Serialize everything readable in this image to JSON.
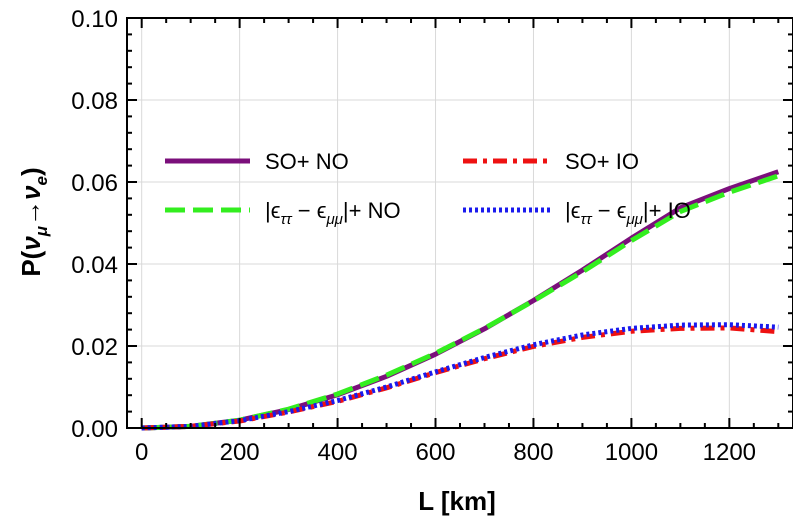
{
  "chart_data": {
    "type": "line",
    "xlabel": "L [km]",
    "ylabel": "P(ν_μ→ν_e)",
    "ylabel_parts": {
      "prefix": "P(",
      "nu1": "ν",
      "sub1": "μ",
      "arrow": "→",
      "nu2": "ν",
      "sub2": "e",
      "suffix": ")"
    },
    "xlim": [
      -30,
      1330
    ],
    "ylim": [
      0,
      0.1
    ],
    "x_ticks": [
      0,
      200,
      400,
      600,
      800,
      1000,
      1200
    ],
    "y_ticks": [
      0.0,
      0.02,
      0.04,
      0.06,
      0.08,
      0.1
    ],
    "x_tick_labels": [
      "0",
      "200",
      "400",
      "600",
      "800",
      "1000",
      "1200"
    ],
    "y_tick_labels": [
      "0.00",
      "0.02",
      "0.04",
      "0.06",
      "0.08",
      "0.10"
    ],
    "grid": true,
    "legend_position": "upper-left-inside",
    "x": [
      0,
      100,
      200,
      300,
      400,
      500,
      600,
      700,
      800,
      900,
      1000,
      1100,
      1200,
      1300
    ],
    "series": [
      {
        "name": "SO+ NO",
        "color": "#7b0f7b",
        "dash": "solid",
        "values": [
          0.0,
          0.0004,
          0.0019,
          0.0045,
          0.0081,
          0.0126,
          0.018,
          0.0242,
          0.0311,
          0.0385,
          0.0463,
          0.0537,
          0.0584,
          0.0625
        ]
      },
      {
        "name": "|ε_ττ − ε_μμ|+ NO",
        "color": "#33ee1f",
        "dash": "dashed",
        "values": [
          0.0,
          0.0004,
          0.0019,
          0.0046,
          0.0083,
          0.0129,
          0.0182,
          0.0243,
          0.031,
          0.0381,
          0.0457,
          0.0528,
          0.0575,
          0.0615
        ]
      },
      {
        "name": "SO+ IO",
        "color": "#ee1111",
        "dash": "dashdot",
        "values": [
          0.0,
          0.0004,
          0.0017,
          0.0039,
          0.0065,
          0.0098,
          0.0135,
          0.0169,
          0.0199,
          0.0221,
          0.0236,
          0.0243,
          0.0244,
          0.0235
        ]
      },
      {
        "name": "|ε_ττ − ε_μμ|+ IO",
        "color": "#1a1aee",
        "dash": "dotted",
        "values": [
          0.0,
          0.0004,
          0.0018,
          0.004,
          0.0067,
          0.01,
          0.0137,
          0.0172,
          0.0203,
          0.0227,
          0.0243,
          0.0251,
          0.0252,
          0.0246
        ]
      }
    ],
    "legend": [
      {
        "series": 0,
        "parts": {
          "a": "SO+ NO"
        }
      },
      {
        "series": 2,
        "parts": {
          "a": "SO+ IO"
        }
      },
      {
        "series": 1,
        "parts": {
          "a": "|ϵ",
          "s1": "ττ",
          "b": " − ϵ",
          "s2": "μμ",
          "c": "|+ NO"
        }
      },
      {
        "series": 3,
        "parts": {
          "a": "|ϵ",
          "s1": "ττ",
          "b": " − ϵ",
          "s2": "μμ",
          "c": "|+ IO"
        }
      }
    ]
  }
}
